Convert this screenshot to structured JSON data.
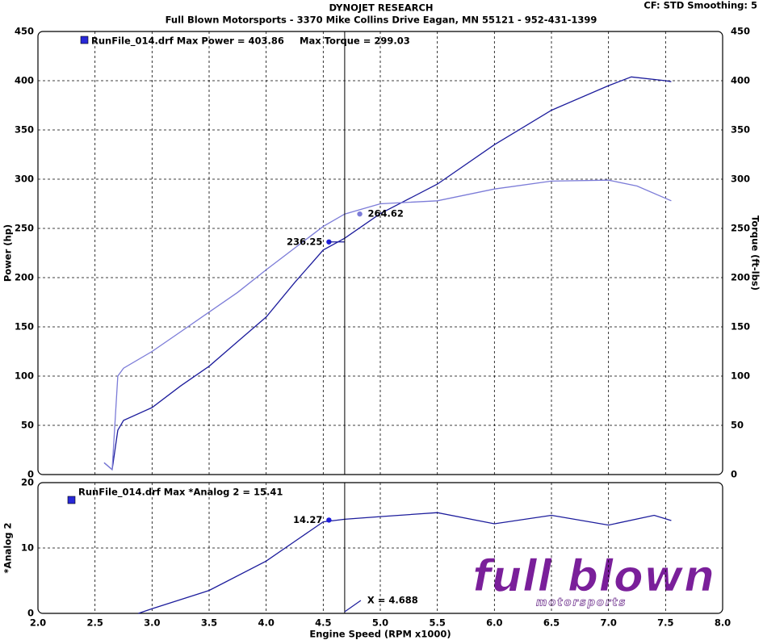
{
  "header": {
    "title": "DYNOJET RESEARCH",
    "subtitle": "Full Blown Motorsports - 3370 Mike Collins Drive  Eagan, MN 55121 - 952-431-1399",
    "settings": "CF: STD  Smoothing: 5"
  },
  "logo": {
    "main": "full blown",
    "sub": "motorsports"
  },
  "chart_data": [
    {
      "type": "line",
      "ylabel": "Power (hp)",
      "y2label": "Torque (ft-lbs)",
      "legend": [
        "RunFile_014.drf Max Power = 403.86",
        "Max Torque = 299.03"
      ],
      "ylim": [
        0,
        450
      ],
      "yticks": [
        0,
        50,
        100,
        150,
        200,
        250,
        300,
        350,
        400,
        450
      ],
      "y2lim": [
        0,
        450
      ],
      "y2ticks": [
        0,
        50,
        100,
        150,
        200,
        250,
        300,
        350,
        400,
        450
      ],
      "grid": true,
      "series": [
        {
          "color": "#1c1c9c",
          "x": [
            2.58,
            2.65,
            2.7,
            2.75,
            3.0,
            3.25,
            3.5,
            3.75,
            4.0,
            4.25,
            4.5,
            4.688,
            5.0,
            5.5,
            6.0,
            6.5,
            7.0,
            7.2,
            7.5,
            7.55
          ],
          "values": [
            12,
            5,
            45,
            55,
            68,
            90,
            110,
            135,
            160,
            195,
            228,
            240,
            265,
            295,
            335,
            370,
            395,
            403.86,
            400,
            399
          ]
        },
        {
          "color": "#7c7cd8",
          "axis": "y2",
          "x": [
            2.58,
            2.65,
            2.7,
            2.75,
            3.0,
            3.25,
            3.5,
            3.75,
            4.0,
            4.25,
            4.5,
            4.688,
            5.0,
            5.5,
            6.0,
            6.5,
            7.0,
            7.25,
            7.55
          ],
          "values": [
            12,
            5,
            100,
            108,
            125,
            145,
            165,
            185,
            208,
            230,
            252,
            264.62,
            275,
            278,
            290,
            298,
            299.03,
            293,
            278
          ]
        }
      ],
      "markers": [
        {
          "x": 4.55,
          "value": 236.25,
          "color": "#1c1cdc"
        },
        {
          "x": 4.82,
          "value": 264.62,
          "color": "#7c7cd8",
          "axis": "y2"
        }
      ]
    },
    {
      "type": "line",
      "ylabel": "*Analog 2",
      "xlabel": "Engine Speed (RPM x1000)",
      "legend": [
        "RunFile_014.drf Max *Analog 2 = 15.41"
      ],
      "xlim": [
        2,
        8
      ],
      "xticks": [
        {
          "value": 2,
          "label": "2.0"
        },
        {
          "value": 2.5,
          "label": "2.5"
        },
        {
          "value": 3,
          "label": "3.0"
        },
        {
          "value": 3.5,
          "label": "3.5"
        },
        {
          "value": 4,
          "label": "4.0"
        },
        {
          "value": 4.5,
          "label": "4.5"
        },
        {
          "value": 5,
          "label": "5.0"
        },
        {
          "value": 5.5,
          "label": "5.5"
        },
        {
          "value": 6,
          "label": "6.0"
        },
        {
          "value": 6.5,
          "label": "6.5"
        },
        {
          "value": 7,
          "label": "7.0"
        },
        {
          "value": 7.5,
          "label": "7.5"
        },
        {
          "value": 8,
          "label": "8.0"
        }
      ],
      "ylim": [
        0,
        20
      ],
      "yticks": [
        0,
        10,
        20
      ],
      "grid": true,
      "cursor": {
        "value": 4.688,
        "label": "X = 4.688"
      },
      "series": [
        {
          "color": "#1c1c9c",
          "x": [
            2.88,
            3.0,
            3.5,
            4.0,
            4.25,
            4.5,
            4.688,
            5.0,
            5.5,
            6.0,
            6.5,
            7.0,
            7.4,
            7.55
          ],
          "values": [
            0,
            0.7,
            3.5,
            8,
            11,
            14,
            14.4,
            14.8,
            15.41,
            13.7,
            15,
            13.5,
            15,
            14.2
          ]
        }
      ],
      "markers": [
        {
          "x": 4.55,
          "value": 14.27,
          "color": "#1c1cdc"
        }
      ]
    }
  ]
}
